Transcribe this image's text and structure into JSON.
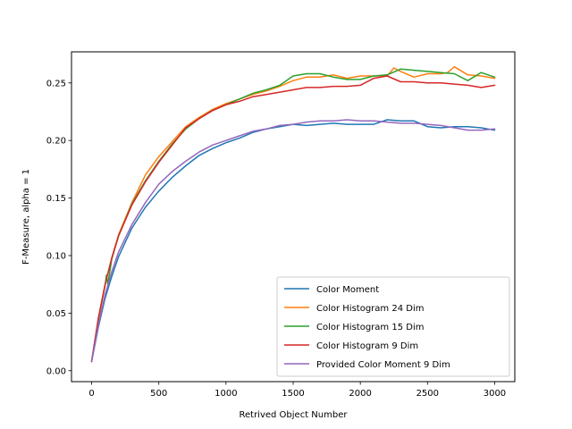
{
  "chart_data": {
    "type": "line",
    "title": "",
    "xlabel": "Retrived Object Number",
    "ylabel": "F-Measure, alpha = 1",
    "xlim": [
      -150,
      3150
    ],
    "ylim": [
      -0.0095,
      0.277
    ],
    "xticks": [
      0,
      500,
      1000,
      1500,
      2000,
      2500,
      3000
    ],
    "yticks": [
      0.0,
      0.05,
      0.1,
      0.15,
      0.2,
      0.25
    ],
    "xtick_labels": [
      "0",
      "500",
      "1000",
      "1500",
      "2000",
      "2500",
      "3000"
    ],
    "ytick_labels": [
      "0.00",
      "0.05",
      "0.10",
      "0.15",
      "0.20",
      "0.25"
    ],
    "grid": false,
    "legend": {
      "placement": "lower-right"
    },
    "series": [
      {
        "name": "Color Moment",
        "color": "#1f77b4",
        "x": [
          0,
          50,
          100,
          150,
          200,
          300,
          400,
          500,
          600,
          700,
          800,
          900,
          1000,
          1100,
          1200,
          1300,
          1400,
          1500,
          1600,
          1700,
          1800,
          1900,
          2000,
          2100,
          2200,
          2300,
          2400,
          2500,
          2600,
          2700,
          2800,
          2900,
          3000
        ],
        "y": [
          0.008,
          0.038,
          0.063,
          0.082,
          0.099,
          0.124,
          0.142,
          0.156,
          0.168,
          0.178,
          0.187,
          0.193,
          0.198,
          0.202,
          0.207,
          0.21,
          0.212,
          0.214,
          0.213,
          0.214,
          0.215,
          0.214,
          0.214,
          0.214,
          0.218,
          0.217,
          0.217,
          0.212,
          0.211,
          0.212,
          0.212,
          0.211,
          0.209
        ]
      },
      {
        "name": "Color Histogram 24 Dim",
        "color": "#ff7f0e",
        "x": [
          0,
          50,
          100,
          150,
          200,
          300,
          400,
          500,
          600,
          700,
          800,
          900,
          1000,
          1100,
          1200,
          1300,
          1400,
          1500,
          1600,
          1700,
          1800,
          1900,
          2000,
          2100,
          2200,
          2250,
          2300,
          2400,
          2500,
          2600,
          2650,
          2700,
          2800,
          2900,
          3000
        ],
        "y": [
          0.008,
          0.045,
          0.075,
          0.098,
          0.118,
          0.146,
          0.17,
          0.186,
          0.199,
          0.212,
          0.22,
          0.227,
          0.232,
          0.236,
          0.24,
          0.243,
          0.247,
          0.252,
          0.255,
          0.255,
          0.257,
          0.254,
          0.256,
          0.256,
          0.256,
          0.263,
          0.26,
          0.255,
          0.258,
          0.258,
          0.259,
          0.264,
          0.257,
          0.256,
          0.254
        ]
      },
      {
        "name": "Color Histogram 15 Dim",
        "color": "#2ca02c",
        "x": [
          0,
          50,
          100,
          110,
          120,
          150,
          200,
          300,
          400,
          500,
          600,
          700,
          800,
          900,
          1000,
          1100,
          1200,
          1300,
          1400,
          1500,
          1600,
          1700,
          1800,
          1900,
          2000,
          2100,
          2200,
          2300,
          2400,
          2500,
          2600,
          2700,
          2800,
          2900,
          3000
        ],
        "y": [
          0.008,
          0.045,
          0.074,
          0.083,
          0.075,
          0.097,
          0.117,
          0.145,
          0.165,
          0.182,
          0.197,
          0.21,
          0.219,
          0.226,
          0.231,
          0.236,
          0.241,
          0.244,
          0.248,
          0.256,
          0.258,
          0.258,
          0.255,
          0.253,
          0.253,
          0.256,
          0.257,
          0.262,
          0.261,
          0.26,
          0.259,
          0.258,
          0.252,
          0.259,
          0.255
        ]
      },
      {
        "name": "Color Histogram 9 Dim",
        "color": "#d62728",
        "x": [
          0,
          50,
          100,
          150,
          200,
          300,
          400,
          500,
          600,
          700,
          800,
          900,
          1000,
          1100,
          1200,
          1300,
          1400,
          1500,
          1600,
          1700,
          1800,
          1900,
          2000,
          2100,
          2200,
          2300,
          2400,
          2500,
          2600,
          2700,
          2800,
          2900,
          3000
        ],
        "y": [
          0.008,
          0.046,
          0.075,
          0.098,
          0.117,
          0.144,
          0.164,
          0.181,
          0.196,
          0.211,
          0.219,
          0.226,
          0.231,
          0.234,
          0.238,
          0.24,
          0.242,
          0.244,
          0.246,
          0.246,
          0.247,
          0.247,
          0.248,
          0.254,
          0.256,
          0.251,
          0.251,
          0.25,
          0.25,
          0.249,
          0.248,
          0.246,
          0.248
        ]
      },
      {
        "name": "Provided Color Moment 9 Dim",
        "color": "#9467bd",
        "x": [
          0,
          50,
          100,
          150,
          200,
          300,
          400,
          500,
          600,
          700,
          800,
          900,
          1000,
          1100,
          1200,
          1300,
          1400,
          1500,
          1600,
          1700,
          1800,
          1900,
          2000,
          2100,
          2200,
          2300,
          2400,
          2500,
          2600,
          2700,
          2800,
          2900,
          3000
        ],
        "y": [
          0.008,
          0.04,
          0.066,
          0.086,
          0.103,
          0.127,
          0.146,
          0.162,
          0.173,
          0.182,
          0.19,
          0.196,
          0.2,
          0.204,
          0.208,
          0.21,
          0.213,
          0.214,
          0.216,
          0.217,
          0.217,
          0.218,
          0.217,
          0.217,
          0.216,
          0.215,
          0.215,
          0.214,
          0.213,
          0.211,
          0.209,
          0.209,
          0.21
        ]
      }
    ]
  }
}
